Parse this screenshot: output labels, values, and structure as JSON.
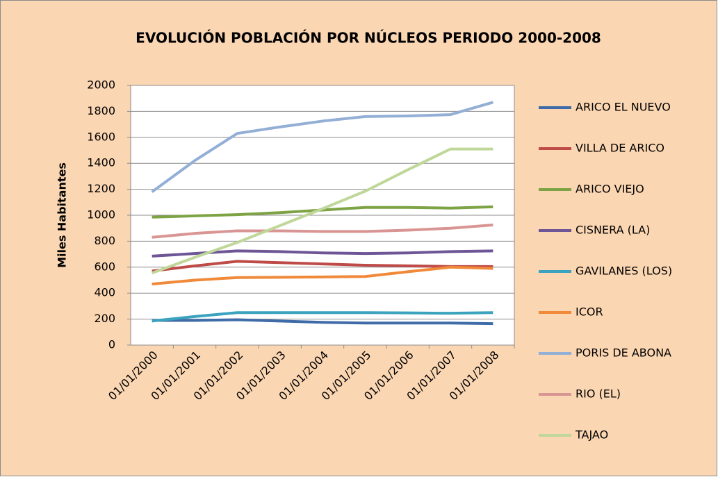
{
  "chart_data": {
    "type": "line",
    "title": "EVOLUCIÓN POBLACIÓN POR NÚCLEOS PERIODO 2000-2008",
    "y_label": "Miles Habitantes",
    "categories": [
      "01/01/2000",
      "01/01/2001",
      "01/01/2002",
      "01/01/2003",
      "01/01/2004",
      "01/01/2005",
      "01/01/2006",
      "01/01/2007",
      "01/01/2008"
    ],
    "ylim": [
      0,
      2000
    ],
    "yticks": [
      0,
      200,
      400,
      600,
      800,
      1000,
      1200,
      1400,
      1600,
      1800,
      2000
    ],
    "grid": true,
    "legend": "right",
    "series": [
      {
        "name": "ARICO EL NUEVO",
        "color": "#3F6CA8",
        "values": [
          190,
          190,
          195,
          185,
          175,
          170,
          170,
          170,
          165
        ]
      },
      {
        "name": "VILLA DE ARICO",
        "color": "#BE4B48",
        "values": [
          570,
          610,
          645,
          635,
          625,
          615,
          610,
          605,
          605
        ]
      },
      {
        "name": "ARICO VIEJO",
        "color": "#7EA345",
        "values": [
          985,
          995,
          1005,
          1020,
          1040,
          1060,
          1060,
          1055,
          1065
        ]
      },
      {
        "name": "CISNERA (LA)",
        "color": "#6E5596",
        "values": [
          685,
          705,
          725,
          720,
          710,
          705,
          710,
          720,
          725
        ]
      },
      {
        "name": "GAVILANES (LOS)",
        "color": "#3CA3BE",
        "values": [
          185,
          220,
          250,
          250,
          250,
          250,
          248,
          245,
          250
        ]
      },
      {
        "name": "ICOR",
        "color": "#F08A3A",
        "values": [
          470,
          500,
          520,
          522,
          525,
          528,
          565,
          600,
          590
        ]
      },
      {
        "name": "PORIS DE ABONA",
        "color": "#93AFD6",
        "values": [
          1180,
          1420,
          1630,
          1680,
          1725,
          1760,
          1765,
          1775,
          1870
        ]
      },
      {
        "name": "RIO (EL)",
        "color": "#D99593",
        "values": [
          830,
          860,
          880,
          880,
          875,
          875,
          885,
          900,
          925
        ]
      },
      {
        "name": "TAJAO",
        "color": "#C0D79A",
        "values": [
          555,
          675,
          790,
          920,
          1050,
          1185,
          1350,
          1510,
          1510
        ]
      }
    ]
  }
}
